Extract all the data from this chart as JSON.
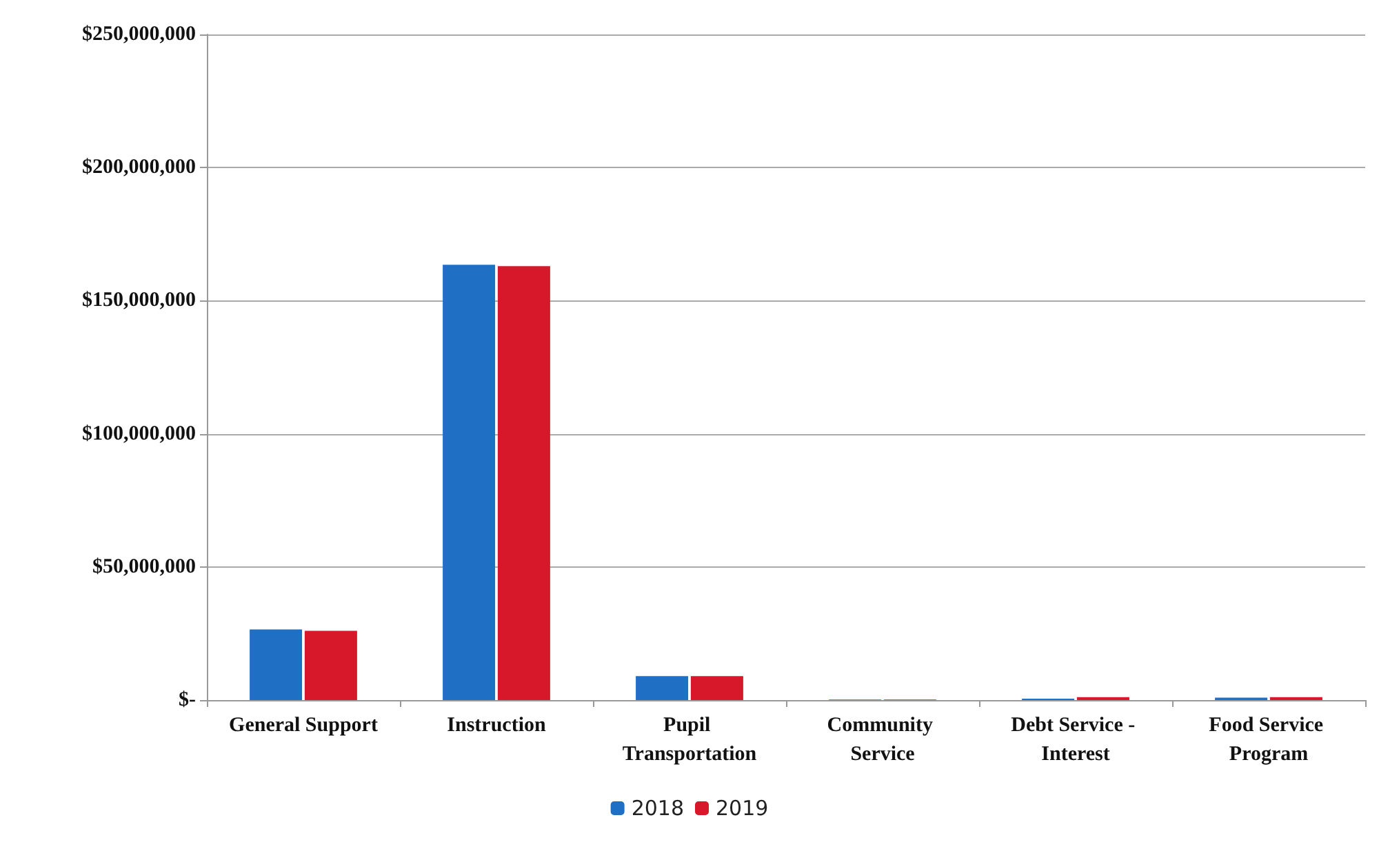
{
  "chart_data": {
    "type": "bar",
    "categories": [
      "General Support",
      "Instruction",
      "Pupil Transportation",
      "Community Service",
      "Debt Service - Interest",
      "Food Service Program"
    ],
    "series": [
      {
        "name": "2018",
        "color": "#1f6fc5",
        "values": [
          26500000,
          163500000,
          9000000,
          200000,
          500000,
          900000
        ]
      },
      {
        "name": "2019",
        "color": "#d7182a",
        "values": [
          26000000,
          163000000,
          9000000,
          200000,
          1100000,
          1100000
        ]
      }
    ],
    "ylim": [
      0,
      250000000
    ],
    "yticks": [
      {
        "value": 0,
        "label": "$-"
      },
      {
        "value": 50000000,
        "label": "$50,000,000"
      },
      {
        "value": 100000000,
        "label": "$100,000,000"
      },
      {
        "value": 150000000,
        "label": "$150,000,000"
      },
      {
        "value": 200000000,
        "label": "$200,000,000"
      },
      {
        "value": 250000000,
        "label": "$250,000,000"
      }
    ],
    "grid": "y",
    "legend": "bottom"
  }
}
